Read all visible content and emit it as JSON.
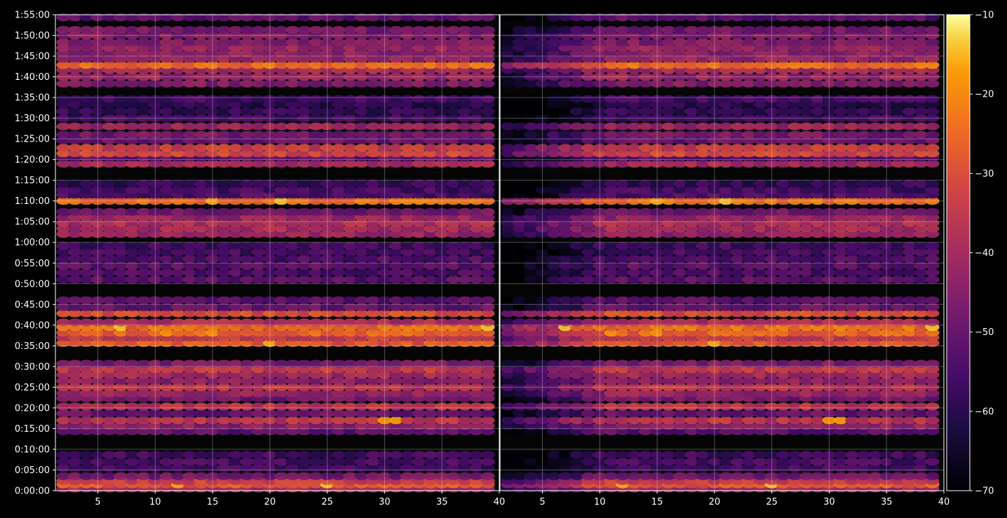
{
  "chart_data": {
    "type": "heatmap",
    "title": "",
    "xlabel": "",
    "ylabel": "",
    "colormap": "inferno",
    "background": "#000000",
    "panels": [
      {
        "xlim": [
          1.3,
          40
        ],
        "xticks": [
          5,
          10,
          15,
          20,
          25,
          30,
          35,
          40
        ],
        "xtick_labels": [
          "5",
          "10",
          "15",
          "20",
          "25",
          "30",
          "35",
          "40"
        ]
      },
      {
        "xlim": [
          1.3,
          40
        ],
        "xticks": [
          5,
          10,
          15,
          20,
          25,
          30,
          35,
          40
        ],
        "xtick_labels": [
          "5",
          "10",
          "15",
          "20",
          "25",
          "30",
          "35",
          "40"
        ]
      }
    ],
    "x_columns": [
      2,
      3,
      4,
      5,
      6,
      7,
      8,
      9,
      10,
      11,
      12,
      13,
      14,
      15,
      16,
      17,
      18,
      19,
      20,
      21,
      22,
      23,
      24,
      25,
      26,
      27,
      28,
      29,
      30,
      31,
      32,
      33,
      34,
      35,
      36,
      37,
      38,
      39
    ],
    "ylim_seconds": [
      0,
      6900
    ],
    "yticks": [
      "0:00:00",
      "0:05:00",
      "0:10:00",
      "0:15:00",
      "0:20:00",
      "0:25:00",
      "0:30:00",
      "0:35:00",
      "0:40:00",
      "0:45:00",
      "0:50:00",
      "0:55:00",
      "1:00:00",
      "1:05:00",
      "1:10:00",
      "1:15:00",
      "1:20:00",
      "1:25:00",
      "1:30:00",
      "1:35:00",
      "1:40:00",
      "1:45:00",
      "1:50:00",
      "1:55:00"
    ],
    "colorbar": {
      "min": -70,
      "max": -10,
      "ticks": [
        -10,
        -20,
        -30,
        -40,
        -50,
        -60,
        -70
      ],
      "tick_labels": [
        "−10",
        "−20",
        "−30",
        "−40",
        "−50",
        "−60",
        "−70"
      ]
    },
    "grid": true,
    "bands": [
      {
        "t": "0:00:30",
        "level": -40
      },
      {
        "t": "0:01:30",
        "level": -28,
        "peaks": [
          [
            12,
            -16
          ],
          [
            25,
            -14
          ]
        ]
      },
      {
        "t": "0:02:20",
        "level": -34
      },
      {
        "t": "0:03:30",
        "level": -48
      },
      {
        "t": "0:05:30",
        "level": -56
      },
      {
        "t": "0:07:00",
        "level": -55
      },
      {
        "t": "0:08:40",
        "level": -56
      },
      {
        "t": "0:14:20",
        "level": -52
      },
      {
        "t": "0:15:40",
        "level": -44
      },
      {
        "t": "0:17:00",
        "level": -36,
        "peaks": [
          [
            30,
            -18
          ],
          [
            31,
            -17
          ]
        ]
      },
      {
        "t": "0:18:40",
        "level": -50
      },
      {
        "t": "0:20:20",
        "level": -36
      },
      {
        "t": "0:22:20",
        "level": -48
      },
      {
        "t": "0:23:30",
        "level": -42
      },
      {
        "t": "0:25:00",
        "level": -36
      },
      {
        "t": "0:26:30",
        "level": -44
      },
      {
        "t": "0:28:00",
        "level": -40
      },
      {
        "t": "0:29:20",
        "level": -35
      },
      {
        "t": "0:30:40",
        "level": -46
      },
      {
        "t": "0:35:40",
        "level": -28,
        "peaks": [
          [
            20,
            -16
          ]
        ]
      },
      {
        "t": "0:37:00",
        "level": -34
      },
      {
        "t": "0:38:10",
        "level": -26,
        "peaks": [
          [
            11,
            -18
          ],
          [
            15,
            -18
          ]
        ]
      },
      {
        "t": "0:39:30",
        "level": -24,
        "peaks": [
          [
            7,
            -14
          ],
          [
            39,
            -14
          ]
        ]
      },
      {
        "t": "0:40:40",
        "level": -38
      },
      {
        "t": "0:42:50",
        "level": -30
      },
      {
        "t": "0:44:20",
        "level": -50
      },
      {
        "t": "0:46:00",
        "level": -52
      },
      {
        "t": "0:51:00",
        "level": -52
      },
      {
        "t": "0:52:40",
        "level": -54
      },
      {
        "t": "0:54:20",
        "level": -52
      },
      {
        "t": "0:56:00",
        "level": -54
      },
      {
        "t": "0:57:40",
        "level": -56
      },
      {
        "t": "0:59:10",
        "level": -56
      },
      {
        "t": "1:02:00",
        "level": -42
      },
      {
        "t": "1:03:20",
        "level": -40
      },
      {
        "t": "1:04:40",
        "level": -38
      },
      {
        "t": "1:06:00",
        "level": -42
      },
      {
        "t": "1:07:20",
        "level": -48
      },
      {
        "t": "1:10:00",
        "level": -24,
        "peaks": [
          [
            15,
            -16
          ],
          [
            21,
            -14
          ]
        ]
      },
      {
        "t": "1:11:30",
        "level": -54
      },
      {
        "t": "1:12:40",
        "level": -56
      },
      {
        "t": "1:14:10",
        "level": -58
      },
      {
        "t": "1:19:00",
        "level": -40
      },
      {
        "t": "1:20:30",
        "level": -52
      },
      {
        "t": "1:21:30",
        "level": -32
      },
      {
        "t": "1:22:50",
        "level": -34
      },
      {
        "t": "1:24:40",
        "level": -50
      },
      {
        "t": "1:26:00",
        "level": -48
      },
      {
        "t": "1:28:00",
        "level": -42
      },
      {
        "t": "1:30:00",
        "level": -56
      },
      {
        "t": "1:31:40",
        "level": -58
      },
      {
        "t": "1:33:20",
        "level": -60
      },
      {
        "t": "1:34:40",
        "level": -56
      },
      {
        "t": "1:38:20",
        "level": -46
      },
      {
        "t": "1:40:00",
        "level": -42
      },
      {
        "t": "1:41:40",
        "level": -40
      },
      {
        "t": "1:42:50",
        "level": -24,
        "peaks": [
          [
            38,
            -20
          ]
        ]
      },
      {
        "t": "1:44:20",
        "level": -42
      },
      {
        "t": "1:45:40",
        "level": -44
      },
      {
        "t": "1:47:00",
        "level": -42
      },
      {
        "t": "1:48:20",
        "level": -46
      },
      {
        "t": "1:50:00",
        "level": -46
      },
      {
        "t": "1:51:20",
        "level": -48
      },
      {
        "t": "1:54:20",
        "level": -52
      }
    ]
  }
}
